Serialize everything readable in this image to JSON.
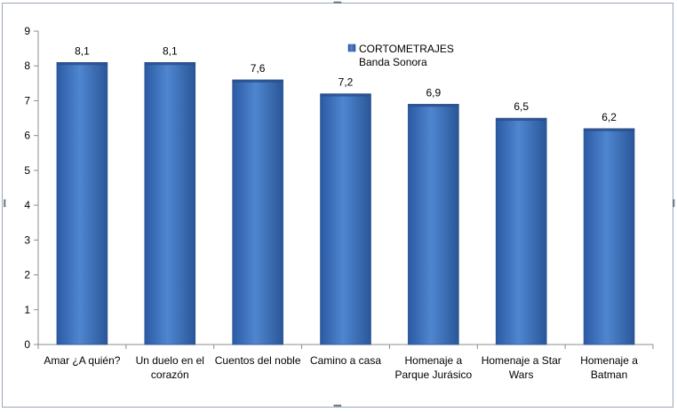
{
  "chart_data": {
    "type": "bar",
    "title": "",
    "xlabel": "",
    "ylabel": "",
    "ylim": [
      0,
      9
    ],
    "yticks": [
      "0",
      "1",
      "2",
      "3",
      "4",
      "5",
      "6",
      "7",
      "8",
      "9"
    ],
    "categories": [
      [
        "Amar ¿A quién?"
      ],
      [
        "Un duelo en el",
        "corazón"
      ],
      [
        "Cuentos del noble"
      ],
      [
        "Camino a casa"
      ],
      [
        "Homenaje a",
        "Parque Jurásico"
      ],
      [
        "Homenaje a Star",
        "Wars"
      ],
      [
        "Homenaje a",
        "Batman"
      ]
    ],
    "series": [
      {
        "name": "CORTOMETRAJES",
        "values": [
          8.1,
          8.1,
          7.6,
          7.2,
          6.9,
          6.5,
          6.2
        ],
        "labels": [
          "8,1",
          "8,1",
          "7,6",
          "7,2",
          "6,9",
          "6,5",
          "6,2"
        ],
        "color": "#3f6fb8"
      }
    ],
    "legend": {
      "entries": [
        "CORTOMETRAJES",
        "Banda Sonora"
      ],
      "position": "top-center"
    },
    "grid": false
  }
}
